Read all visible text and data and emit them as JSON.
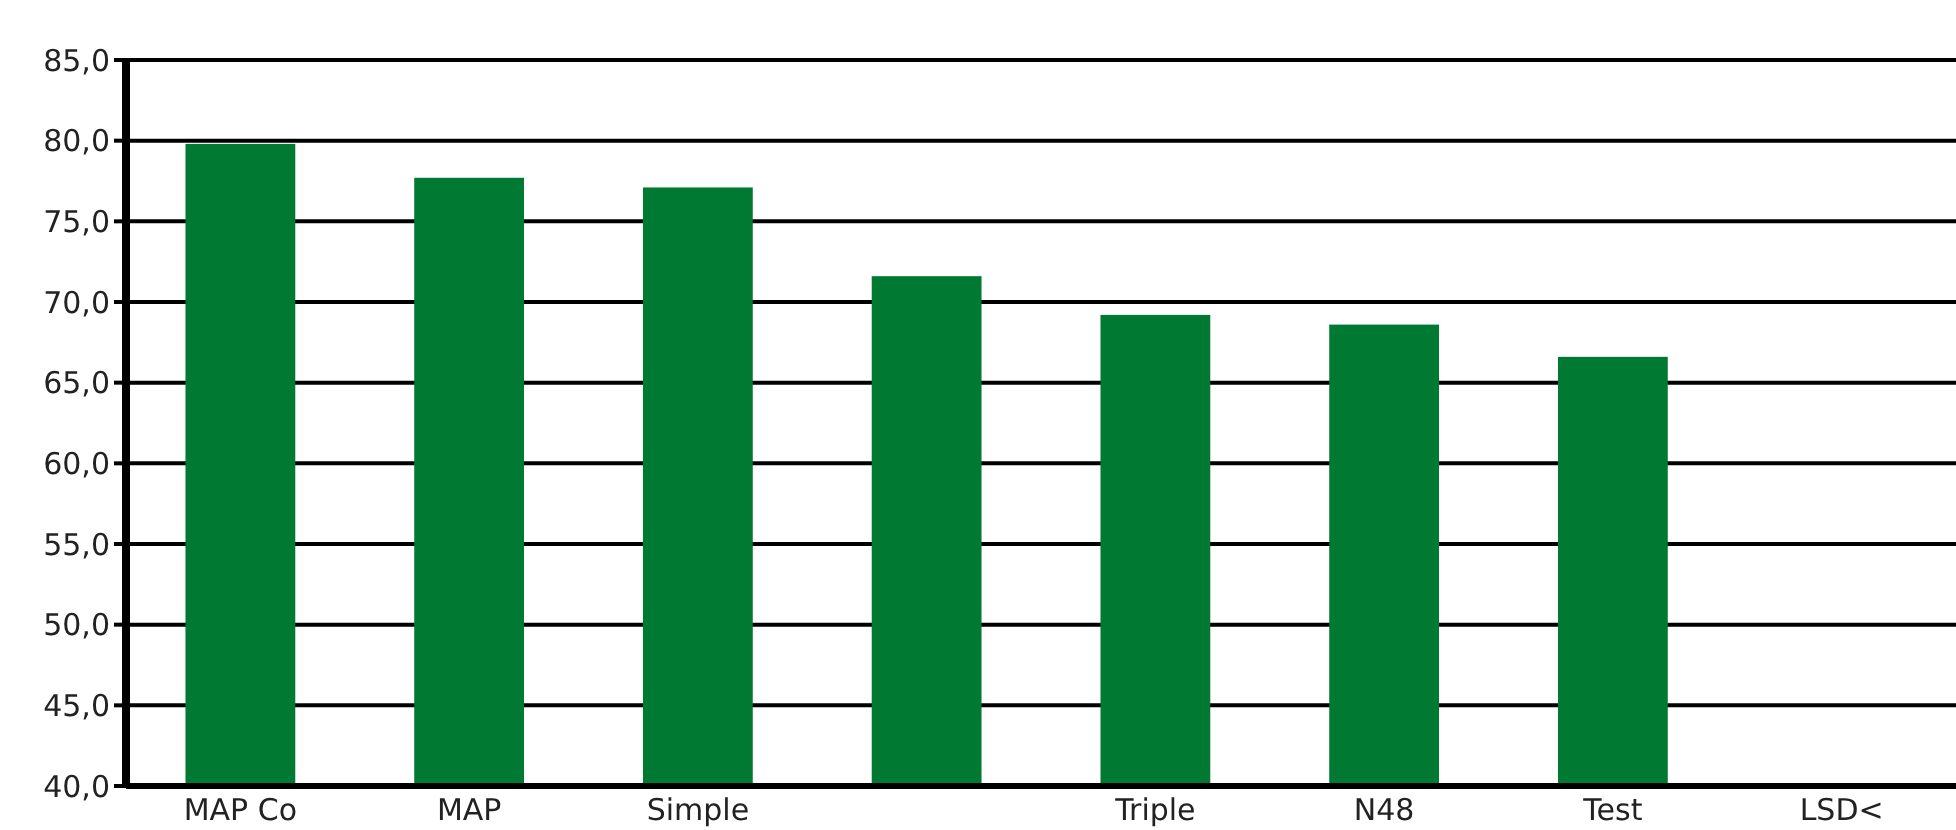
{
  "chart_data": {
    "type": "bar",
    "categories": [
      "MAP Co",
      "MAP",
      "Simple",
      null,
      "Triple",
      "N48",
      "Test",
      "LSD<"
    ],
    "values": [
      79.8,
      77.7,
      77.1,
      71.6,
      69.2,
      68.6,
      66.6,
      null
    ],
    "color": "#007a33",
    "ylim": [
      40,
      85
    ],
    "yticks": [
      {
        "value": 40,
        "label": "40,0"
      },
      {
        "value": 45,
        "label": "45,0"
      },
      {
        "value": 50,
        "label": "50,0"
      },
      {
        "value": 55,
        "label": "55,0"
      },
      {
        "value": 60,
        "label": "60,0"
      },
      {
        "value": 65,
        "label": "65,0"
      },
      {
        "value": 70,
        "label": "70,0"
      },
      {
        "value": 75,
        "label": "75,0"
      },
      {
        "value": 80,
        "label": "80,0"
      },
      {
        "value": 85,
        "label": "85,0"
      }
    ],
    "grid": "y"
  }
}
